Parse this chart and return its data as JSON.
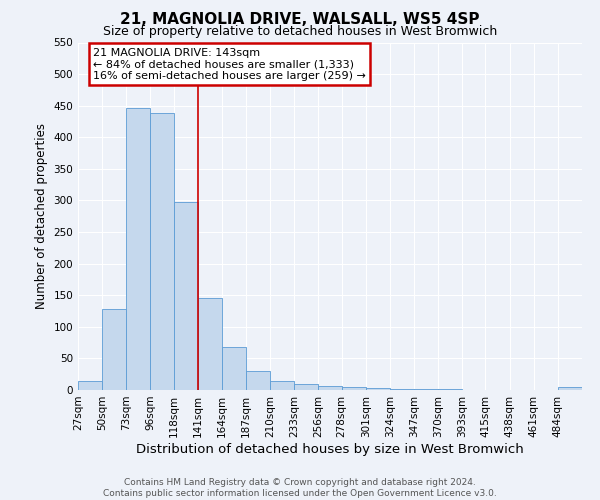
{
  "title": "21, MAGNOLIA DRIVE, WALSALL, WS5 4SP",
  "subtitle": "Size of property relative to detached houses in West Bromwich",
  "xlabel": "Distribution of detached houses by size in West Bromwich",
  "ylabel": "Number of detached properties",
  "footer_line1": "Contains HM Land Registry data © Crown copyright and database right 2024.",
  "footer_line2": "Contains public sector information licensed under the Open Government Licence v3.0.",
  "bin_labels": [
    "27sqm",
    "50sqm",
    "73sqm",
    "96sqm",
    "118sqm",
    "141sqm",
    "164sqm",
    "187sqm",
    "210sqm",
    "233sqm",
    "256sqm",
    "278sqm",
    "301sqm",
    "324sqm",
    "347sqm",
    "370sqm",
    "393sqm",
    "415sqm",
    "438sqm",
    "461sqm",
    "484sqm"
  ],
  "bin_edges": [
    27,
    50,
    73,
    96,
    118,
    141,
    164,
    187,
    210,
    233,
    256,
    278,
    301,
    324,
    347,
    370,
    393,
    415,
    438,
    461,
    484,
    507
  ],
  "bar_heights": [
    15,
    128,
    447,
    438,
    298,
    145,
    68,
    30,
    15,
    10,
    7,
    4,
    3,
    2,
    1,
    1,
    0,
    0,
    0,
    0,
    5
  ],
  "bar_color": "#c5d8ed",
  "bar_edge_color": "#5b9bd5",
  "vline_x": 141,
  "vline_color": "#cc0000",
  "annotation_title": "21 MAGNOLIA DRIVE: 143sqm",
  "annotation_line2": "← 84% of detached houses are smaller (1,333)",
  "annotation_line3": "16% of semi-detached houses are larger (259) →",
  "annotation_box_color": "#cc0000",
  "ylim": [
    0,
    550
  ],
  "xlim_min": 27,
  "xlim_max": 507,
  "yticks": [
    0,
    50,
    100,
    150,
    200,
    250,
    300,
    350,
    400,
    450,
    500,
    550
  ],
  "bg_color": "#eef2f9",
  "grid_color": "#ffffff",
  "title_fontsize": 11,
  "subtitle_fontsize": 9,
  "xlabel_fontsize": 9.5,
  "ylabel_fontsize": 8.5,
  "tick_fontsize": 7.5,
  "annotation_fontsize": 8,
  "footer_fontsize": 6.5
}
